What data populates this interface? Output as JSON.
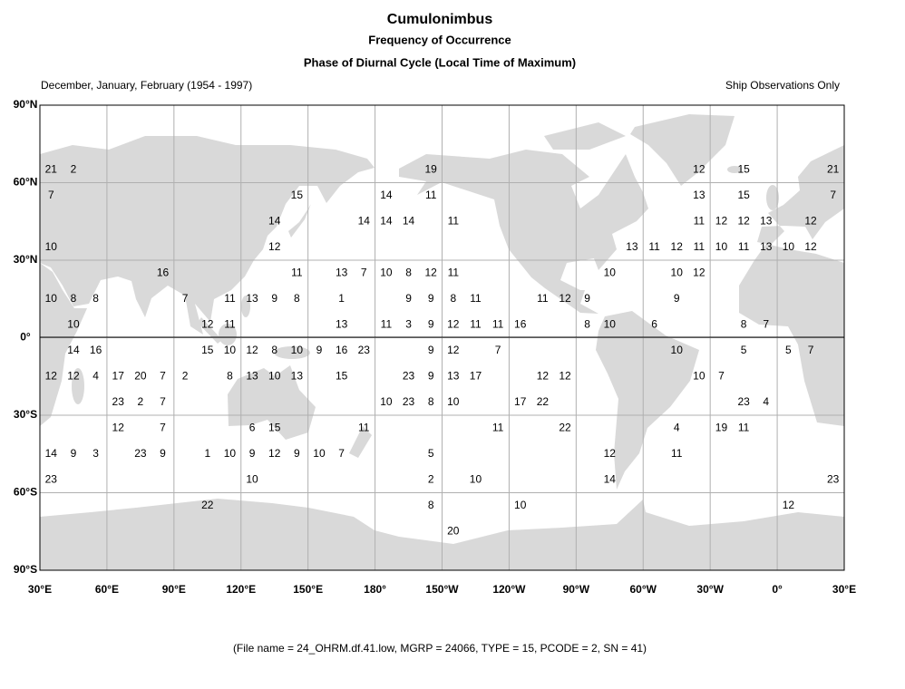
{
  "header": {
    "title": "Cumulonimbus",
    "subtitle": "Frequency of Occurrence",
    "caption": "Phase of Diurnal Cycle (Local Time of Maximum)",
    "period": "December, January, February (1954 - 1997)",
    "source": "Ship Observations Only"
  },
  "map": {
    "lon_labels": [
      "30°E",
      "60°E",
      "90°E",
      "120°E",
      "150°E",
      "180°",
      "150°W",
      "120°W",
      "90°W",
      "60°W",
      "30°W",
      "0°",
      "30°E"
    ],
    "lat_labels": [
      "90°N",
      "60°N",
      "30°N",
      "0°",
      "30°S",
      "60°S",
      "90°S"
    ]
  },
  "grid": {
    "rows": [
      [
        null,
        null,
        null,
        null,
        null,
        null,
        null,
        null,
        null,
        null,
        null,
        null,
        null,
        null,
        null,
        null,
        null,
        null,
        null,
        null,
        null,
        null,
        null,
        null,
        null,
        null,
        null,
        null,
        null,
        null,
        null,
        null,
        null,
        null,
        null,
        null
      ],
      [
        null,
        null,
        null,
        null,
        null,
        null,
        null,
        null,
        null,
        null,
        null,
        null,
        null,
        null,
        null,
        null,
        null,
        null,
        null,
        null,
        null,
        null,
        null,
        null,
        null,
        null,
        null,
        null,
        null,
        null,
        null,
        null,
        null,
        null,
        null,
        null
      ],
      [
        21,
        2,
        null,
        null,
        null,
        null,
        null,
        null,
        null,
        null,
        null,
        null,
        null,
        null,
        null,
        null,
        null,
        19,
        null,
        null,
        null,
        null,
        null,
        null,
        null,
        null,
        null,
        null,
        null,
        12,
        null,
        15,
        null,
        null,
        null,
        21
      ],
      [
        7,
        null,
        null,
        null,
        null,
        null,
        null,
        null,
        null,
        null,
        null,
        15,
        null,
        null,
        null,
        14,
        null,
        11,
        null,
        null,
        null,
        null,
        null,
        null,
        null,
        null,
        null,
        null,
        null,
        13,
        null,
        15,
        null,
        null,
        null,
        7
      ],
      [
        null,
        null,
        null,
        null,
        null,
        null,
        null,
        null,
        null,
        null,
        14,
        null,
        null,
        null,
        14,
        14,
        14,
        null,
        11,
        null,
        null,
        null,
        null,
        null,
        null,
        null,
        null,
        null,
        null,
        11,
        12,
        12,
        13,
        null,
        12,
        null
      ],
      [
        10,
        null,
        null,
        null,
        null,
        null,
        null,
        null,
        null,
        null,
        12,
        null,
        null,
        null,
        null,
        null,
        null,
        null,
        null,
        null,
        null,
        null,
        null,
        null,
        null,
        null,
        13,
        11,
        12,
        11,
        10,
        11,
        13,
        10,
        12,
        null
      ],
      [
        null,
        null,
        null,
        null,
        null,
        16,
        null,
        null,
        null,
        null,
        null,
        11,
        null,
        13,
        7,
        10,
        8,
        12,
        11,
        null,
        null,
        null,
        null,
        null,
        null,
        10,
        null,
        null,
        10,
        12,
        null,
        null,
        null,
        null,
        null,
        null
      ],
      [
        10,
        8,
        8,
        null,
        null,
        null,
        7,
        null,
        11,
        13,
        9,
        8,
        null,
        1,
        null,
        null,
        9,
        9,
        8,
        11,
        null,
        null,
        11,
        12,
        9,
        null,
        null,
        null,
        9,
        null,
        null,
        null,
        null,
        null,
        null,
        null
      ],
      [
        null,
        10,
        null,
        null,
        null,
        null,
        null,
        12,
        11,
        null,
        null,
        null,
        null,
        13,
        null,
        11,
        3,
        9,
        12,
        11,
        11,
        16,
        null,
        null,
        8,
        10,
        null,
        6,
        null,
        null,
        null,
        8,
        7,
        null,
        null,
        null
      ],
      [
        null,
        14,
        16,
        null,
        null,
        null,
        null,
        15,
        10,
        12,
        8,
        10,
        9,
        16,
        23,
        null,
        null,
        9,
        12,
        null,
        7,
        null,
        null,
        null,
        null,
        null,
        null,
        null,
        10,
        null,
        null,
        5,
        null,
        5,
        7,
        null
      ],
      [
        12,
        12,
        4,
        17,
        20,
        7,
        2,
        null,
        8,
        13,
        10,
        13,
        null,
        15,
        null,
        null,
        23,
        9,
        13,
        17,
        null,
        null,
        12,
        12,
        null,
        null,
        null,
        null,
        null,
        10,
        7,
        null,
        null,
        null,
        null,
        null
      ],
      [
        null,
        null,
        null,
        23,
        2,
        7,
        null,
        null,
        null,
        null,
        null,
        null,
        null,
        null,
        null,
        10,
        23,
        8,
        10,
        null,
        null,
        17,
        22,
        null,
        null,
        null,
        null,
        null,
        null,
        null,
        null,
        23,
        4,
        null,
        null,
        null
      ],
      [
        null,
        null,
        null,
        12,
        null,
        7,
        null,
        null,
        null,
        6,
        15,
        null,
        null,
        null,
        11,
        null,
        null,
        null,
        null,
        null,
        11,
        null,
        null,
        22,
        null,
        null,
        null,
        null,
        4,
        null,
        19,
        11,
        null,
        null,
        null,
        null
      ],
      [
        14,
        9,
        3,
        null,
        23,
        9,
        null,
        1,
        10,
        9,
        12,
        9,
        10,
        7,
        null,
        null,
        null,
        5,
        null,
        null,
        null,
        null,
        null,
        null,
        null,
        12,
        null,
        null,
        11,
        null,
        null,
        null,
        null,
        null,
        null,
        null
      ],
      [
        23,
        null,
        null,
        null,
        null,
        null,
        null,
        null,
        null,
        10,
        null,
        null,
        null,
        null,
        null,
        null,
        null,
        2,
        null,
        10,
        null,
        null,
        null,
        null,
        null,
        14,
        null,
        null,
        null,
        null,
        null,
        null,
        null,
        null,
        null,
        23
      ],
      [
        null,
        null,
        null,
        null,
        null,
        null,
        null,
        22,
        null,
        null,
        null,
        null,
        null,
        null,
        null,
        null,
        null,
        8,
        null,
        null,
        null,
        10,
        null,
        null,
        null,
        null,
        null,
        null,
        null,
        null,
        null,
        null,
        null,
        12,
        null,
        null
      ],
      [
        null,
        null,
        null,
        null,
        null,
        null,
        null,
        null,
        null,
        null,
        null,
        null,
        null,
        null,
        null,
        null,
        null,
        null,
        20,
        null,
        null,
        null,
        null,
        null,
        null,
        null,
        null,
        null,
        null,
        null,
        null,
        null,
        null,
        null,
        null,
        null
      ],
      [
        null,
        null,
        null,
        null,
        null,
        null,
        null,
        null,
        null,
        null,
        null,
        null,
        null,
        null,
        null,
        null,
        null,
        null,
        null,
        null,
        null,
        null,
        null,
        null,
        null,
        null,
        null,
        null,
        null,
        null,
        null,
        null,
        null,
        null,
        null,
        null
      ]
    ]
  },
  "footer": "(File name = 24_OHRM.df.41.low, MGRP = 24066, TYPE = 15, PCODE = 2, SN = 41)"
}
